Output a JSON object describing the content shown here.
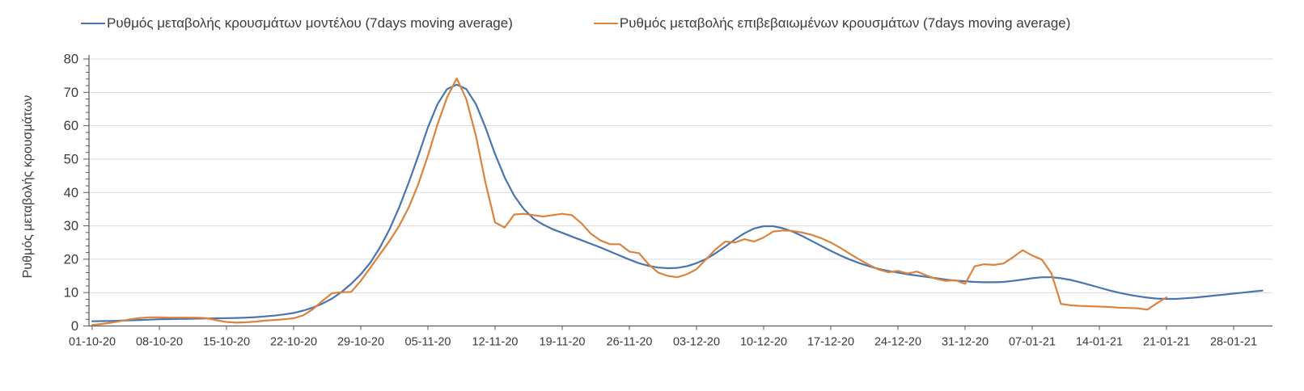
{
  "chart_data": {
    "type": "line",
    "title": "",
    "xlabel": "",
    "ylabel": "Ρυθμός μεταβολής κρουσμάτων",
    "ylim": [
      0,
      80
    ],
    "y_ticks": [
      0,
      10,
      20,
      30,
      40,
      50,
      60,
      70,
      80
    ],
    "y_minor_tick_step": 2,
    "grid": true,
    "legend_position": "top",
    "x_unit": "daily",
    "x_start": "01-10-20",
    "x_tick_labels": [
      "01-10-20",
      "08-10-20",
      "15-10-20",
      "22-10-20",
      "29-10-20",
      "05-11-20",
      "12-11-20",
      "19-11-20",
      "26-11-20",
      "03-12-20",
      "10-12-20",
      "17-12-20",
      "24-12-20",
      "31-12-20",
      "07-01-21",
      "14-01-21",
      "21-01-21",
      "28-01-21"
    ],
    "colors": {
      "gridline": "#d9d9d9",
      "axis": "#595959",
      "text": "#3b3b3b"
    },
    "series": [
      {
        "name": "Ρυθμός μεταβολής κρουσμάτων μοντέλου (7days moving average)",
        "color": "#4a74b0",
        "start_date": "01-10-20",
        "end_date": "31-01-21",
        "values": [
          1.4,
          1.45,
          1.5,
          1.6,
          1.7,
          1.8,
          1.9,
          2.0,
          2.05,
          2.1,
          2.15,
          2.2,
          2.25,
          2.3,
          2.35,
          2.4,
          2.5,
          2.65,
          2.85,
          3.1,
          3.45,
          3.9,
          4.6,
          5.5,
          6.7,
          8.2,
          10.2,
          12.6,
          15.5,
          19.0,
          23.5,
          29.0,
          35.5,
          43.0,
          51.0,
          59.5,
          66.5,
          71.0,
          72.3,
          71.0,
          66.5,
          59.5,
          51.5,
          44.5,
          39.0,
          35.0,
          32.2,
          30.4,
          29.0,
          27.9,
          26.8,
          25.7,
          24.6,
          23.5,
          22.3,
          21.1,
          19.9,
          18.8,
          18.0,
          17.5,
          17.3,
          17.4,
          17.9,
          18.8,
          20.1,
          21.8,
          23.8,
          25.9,
          27.8,
          29.2,
          29.9,
          29.9,
          29.3,
          28.3,
          27.0,
          25.5,
          24.0,
          22.5,
          21.1,
          19.9,
          18.8,
          17.9,
          17.1,
          16.5,
          16.0,
          15.5,
          15.1,
          14.7,
          14.3,
          13.9,
          13.6,
          13.4,
          13.2,
          13.1,
          13.1,
          13.2,
          13.5,
          13.9,
          14.3,
          14.6,
          14.6,
          14.3,
          13.8,
          13.1,
          12.3,
          11.5,
          10.7,
          10.0,
          9.4,
          8.9,
          8.5,
          8.2,
          8.1,
          8.1,
          8.3,
          8.5,
          8.8,
          9.1,
          9.4,
          9.7,
          10.0,
          10.3,
          10.6
        ]
      },
      {
        "name": "Ρυθμός μεταβολής επιβεβαιωμένων κρουσμάτων (7days moving average)",
        "color": "#d9833f",
        "start_date": "01-10-20",
        "end_date": "21-01-21",
        "values": [
          0.3,
          0.6,
          1.0,
          1.5,
          2.0,
          2.4,
          2.6,
          2.6,
          2.5,
          2.5,
          2.5,
          2.5,
          2.3,
          1.7,
          1.2,
          1.0,
          1.1,
          1.3,
          1.6,
          1.8,
          2.0,
          2.3,
          3.2,
          5.0,
          7.5,
          9.8,
          10.1,
          10.2,
          13.5,
          17.5,
          21.5,
          25.5,
          30.0,
          35.5,
          42.5,
          51.0,
          60.5,
          68.5,
          74.2,
          68.0,
          57.0,
          43.0,
          31.0,
          29.5,
          33.4,
          33.6,
          33.2,
          32.8,
          33.2,
          33.6,
          33.2,
          30.8,
          27.6,
          25.6,
          24.5,
          24.5,
          22.3,
          21.8,
          18.5,
          16.0,
          15.0,
          14.6,
          15.5,
          17.0,
          20.0,
          23.0,
          25.3,
          25.0,
          26.0,
          25.3,
          26.5,
          28.3,
          28.6,
          28.5,
          28.0,
          27.3,
          26.3,
          25.0,
          23.4,
          21.6,
          19.9,
          18.3,
          16.9,
          16.1,
          16.5,
          15.7,
          16.3,
          15.1,
          14.1,
          13.5,
          13.7,
          12.6,
          17.9,
          18.5,
          18.3,
          18.7,
          20.6,
          22.7,
          21.1,
          19.9,
          15.8,
          6.6,
          6.2,
          6.0,
          5.9,
          5.8,
          5.7,
          5.5,
          5.4,
          5.3,
          4.9,
          6.8,
          8.6
        ]
      }
    ]
  }
}
